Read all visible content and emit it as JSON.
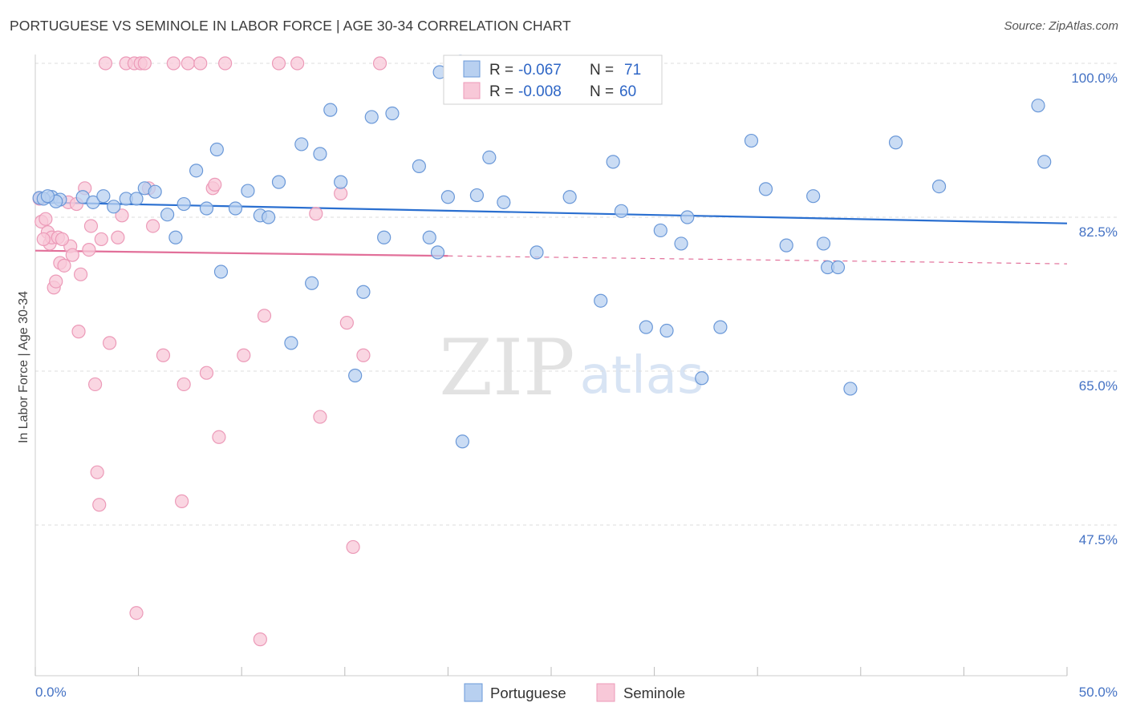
{
  "title": "PORTUGUESE VS SEMINOLE IN LABOR FORCE | AGE 30-34 CORRELATION CHART",
  "source": "Source: ZipAtlas.com",
  "watermark": {
    "zip": "ZIP",
    "atlas": "atlas"
  },
  "colors": {
    "blue_fill": "#b8d0f0",
    "blue_stroke": "#6a98d8",
    "blue_line": "#2a6fd0",
    "pink_fill": "#f8c8d8",
    "pink_stroke": "#ec9ab8",
    "pink_line": "#e2709a",
    "tick_text": "#4472c4",
    "grid": "#dddddd"
  },
  "legend": {
    "rows": [
      {
        "series": "Portuguese",
        "r_label": "R =",
        "r_value": "-0.067",
        "n_label": "N =",
        "n_value": "71"
      },
      {
        "series": "Seminole",
        "r_label": "R =",
        "r_value": "-0.008",
        "n_label": "N =",
        "n_value": "60"
      }
    ]
  },
  "chart_data": {
    "type": "scatter",
    "title": "PORTUGUESE VS SEMINOLE IN LABOR FORCE | AGE 30-34 CORRELATION CHART",
    "xlabel": "",
    "ylabel": "In Labor Force | Age 30-34",
    "xlim": [
      0,
      50
    ],
    "ylim": [
      32,
      102
    ],
    "x_tick_labels": [
      "0.0%",
      "50.0%"
    ],
    "y_ticks": [
      100,
      82.5,
      65,
      47.5
    ],
    "y_tick_labels": [
      "100.0%",
      "82.5%",
      "65.0%",
      "47.5%"
    ],
    "series": [
      {
        "name": "Portuguese",
        "r": -0.067,
        "n": 71,
        "trend": {
          "x": [
            0,
            50
          ],
          "y": [
            84.2,
            81.8
          ]
        },
        "points": [
          [
            0.2,
            84.7
          ],
          [
            0.8,
            84.8
          ],
          [
            1.2,
            84.5
          ],
          [
            2.3,
            84.8
          ],
          [
            2.8,
            84.2
          ],
          [
            3.3,
            84.9
          ],
          [
            3.8,
            83.7
          ],
          [
            4.4,
            84.6
          ],
          [
            4.9,
            84.6
          ],
          [
            5.3,
            85.8
          ],
          [
            5.8,
            85.4
          ],
          [
            6.4,
            82.8
          ],
          [
            6.8,
            80.2
          ],
          [
            7.2,
            84.0
          ],
          [
            7.8,
            87.8
          ],
          [
            8.3,
            83.5
          ],
          [
            8.8,
            90.2
          ],
          [
            9.0,
            76.3
          ],
          [
            9.7,
            83.5
          ],
          [
            10.3,
            85.5
          ],
          [
            10.9,
            82.7
          ],
          [
            11.3,
            82.5
          ],
          [
            11.8,
            86.5
          ],
          [
            12.4,
            68.2
          ],
          [
            12.9,
            90.8
          ],
          [
            13.4,
            75.0
          ],
          [
            13.8,
            89.7
          ],
          [
            14.3,
            94.7
          ],
          [
            14.8,
            86.5
          ],
          [
            15.5,
            64.5
          ],
          [
            15.9,
            74.0
          ],
          [
            16.3,
            93.9
          ],
          [
            16.9,
            80.2
          ],
          [
            17.3,
            94.3
          ],
          [
            18.6,
            88.3
          ],
          [
            19.1,
            80.2
          ],
          [
            19.5,
            78.5
          ],
          [
            19.6,
            99.0
          ],
          [
            20.0,
            84.8
          ],
          [
            20.6,
            100.2
          ],
          [
            20.7,
            57.0
          ],
          [
            21.4,
            85.0
          ],
          [
            22.0,
            89.3
          ],
          [
            22.7,
            84.2
          ],
          [
            24.3,
            78.5
          ],
          [
            25.9,
            84.8
          ],
          [
            27.4,
            73.0
          ],
          [
            28.0,
            88.8
          ],
          [
            28.4,
            83.2
          ],
          [
            29.6,
            70.0
          ],
          [
            30.3,
            81.0
          ],
          [
            30.6,
            69.6
          ],
          [
            31.3,
            79.5
          ],
          [
            31.6,
            82.5
          ],
          [
            32.3,
            64.2
          ],
          [
            33.2,
            70.0
          ],
          [
            34.7,
            91.2
          ],
          [
            35.4,
            85.7
          ],
          [
            36.4,
            79.3
          ],
          [
            37.7,
            84.9
          ],
          [
            38.2,
            79.5
          ],
          [
            38.4,
            76.8
          ],
          [
            38.9,
            76.8
          ],
          [
            39.5,
            63.0
          ],
          [
            41.7,
            91.0
          ],
          [
            43.8,
            86.0
          ],
          [
            48.6,
            95.2
          ],
          [
            48.9,
            88.8
          ],
          [
            0.4,
            84.6
          ],
          [
            1.0,
            84.3
          ],
          [
            0.6,
            84.9
          ]
        ]
      },
      {
        "name": "Seminole",
        "r": -0.008,
        "n": 60,
        "trend": {
          "x": [
            0,
            50
          ],
          "y": [
            78.7,
            77.2
          ]
        },
        "points": [
          [
            0.2,
            84.6
          ],
          [
            0.3,
            82.0
          ],
          [
            0.5,
            82.3
          ],
          [
            0.6,
            80.8
          ],
          [
            0.7,
            79.5
          ],
          [
            0.8,
            80.2
          ],
          [
            0.9,
            74.5
          ],
          [
            1.0,
            75.2
          ],
          [
            1.1,
            80.2
          ],
          [
            1.2,
            77.3
          ],
          [
            1.4,
            77.0
          ],
          [
            1.6,
            84.2
          ],
          [
            1.7,
            79.2
          ],
          [
            1.8,
            78.2
          ],
          [
            2.1,
            69.5
          ],
          [
            2.2,
            76.0
          ],
          [
            2.4,
            85.8
          ],
          [
            2.6,
            78.8
          ],
          [
            2.7,
            81.5
          ],
          [
            2.9,
            63.5
          ],
          [
            3.0,
            53.5
          ],
          [
            3.1,
            49.8
          ],
          [
            3.2,
            80.0
          ],
          [
            3.4,
            100.0
          ],
          [
            3.6,
            68.2
          ],
          [
            4.0,
            80.2
          ],
          [
            4.2,
            82.7
          ],
          [
            4.4,
            100.0
          ],
          [
            4.8,
            100.0
          ],
          [
            4.9,
            37.5
          ],
          [
            5.1,
            100.0
          ],
          [
            5.3,
            100.0
          ],
          [
            5.5,
            85.8
          ],
          [
            5.7,
            81.5
          ],
          [
            6.2,
            66.8
          ],
          [
            6.7,
            100.0
          ],
          [
            7.1,
            50.2
          ],
          [
            7.2,
            63.5
          ],
          [
            7.4,
            100.0
          ],
          [
            8.0,
            100.0
          ],
          [
            8.3,
            64.8
          ],
          [
            8.6,
            85.8
          ],
          [
            8.9,
            57.5
          ],
          [
            9.2,
            100.0
          ],
          [
            10.1,
            66.8
          ],
          [
            11.1,
            71.3
          ],
          [
            11.8,
            100.0
          ],
          [
            12.7,
            100.0
          ],
          [
            13.6,
            82.9
          ],
          [
            13.8,
            59.8
          ],
          [
            14.8,
            85.2
          ],
          [
            15.1,
            70.5
          ],
          [
            15.4,
            45.0
          ],
          [
            15.9,
            66.8
          ],
          [
            16.7,
            100.0
          ],
          [
            8.7,
            86.2
          ],
          [
            10.9,
            34.5
          ],
          [
            1.3,
            80.0
          ],
          [
            2.0,
            84.0
          ],
          [
            0.4,
            80.0
          ]
        ]
      }
    ]
  }
}
